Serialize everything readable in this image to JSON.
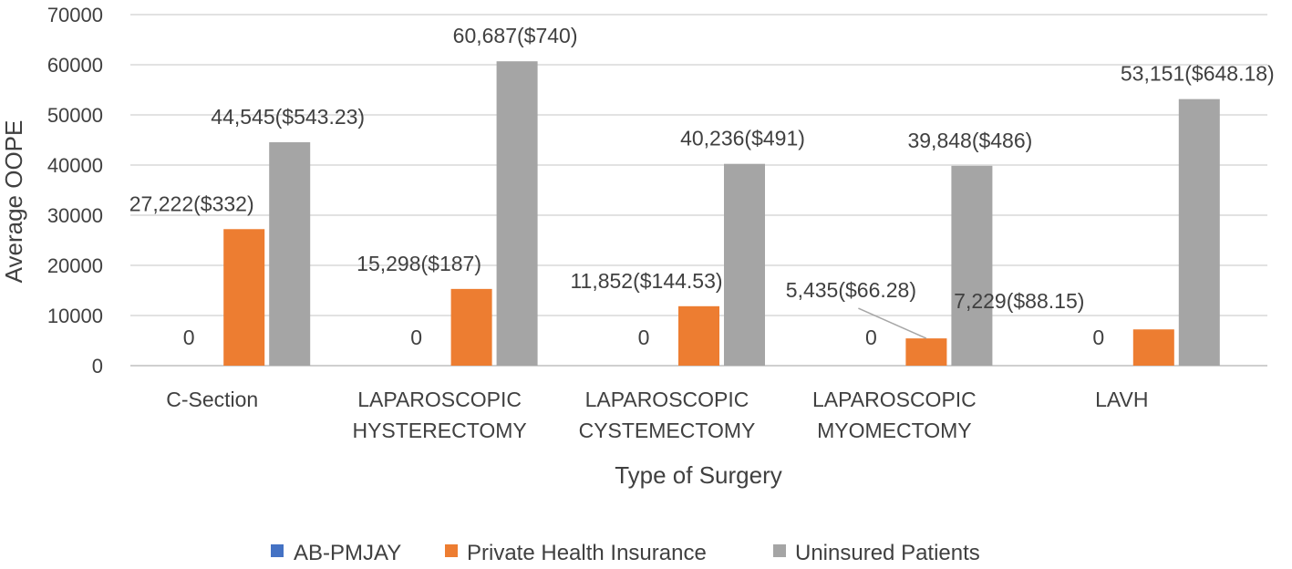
{
  "chart_data": {
    "type": "bar",
    "xlabel": "Type of Surgery",
    "ylabel": "Average OOPE",
    "ylim": [
      0,
      70000
    ],
    "yticks": [
      0,
      10000,
      20000,
      30000,
      40000,
      50000,
      60000,
      70000
    ],
    "grid": true,
    "legend_position": "bottom",
    "categories": [
      [
        "C-Section"
      ],
      [
        "LAPAROSCOPIC",
        "HYSTERECTOMY"
      ],
      [
        "LAPAROSCOPIC",
        "CYSTEMECTOMY"
      ],
      [
        "LAPAROSCOPIC",
        "MYOMECTOMY"
      ],
      [
        "LAVH"
      ]
    ],
    "series": [
      {
        "name": "AB-PMJAY",
        "color": "#4472C4",
        "values": [
          0,
          0,
          0,
          0,
          0
        ],
        "labels": [
          "0",
          "0",
          "0",
          "0",
          "0"
        ]
      },
      {
        "name": "Private Health Insurance",
        "color": "#ED7D31",
        "values": [
          27222,
          15298,
          11852,
          5435,
          7229
        ],
        "labels": [
          "27,222($332)",
          "15,298($187)",
          "11,852($144.53)",
          "5,435($66.28)",
          "7,229($88.15)"
        ]
      },
      {
        "name": "Uninsured Patients",
        "color": "#A5A5A5",
        "values": [
          44545,
          60687,
          40236,
          39848,
          53151
        ],
        "labels": [
          "44,545($543.23)",
          "60,687($740)",
          "40,236($491)",
          "39,848($486)",
          "53,151($648.18)"
        ]
      }
    ]
  }
}
